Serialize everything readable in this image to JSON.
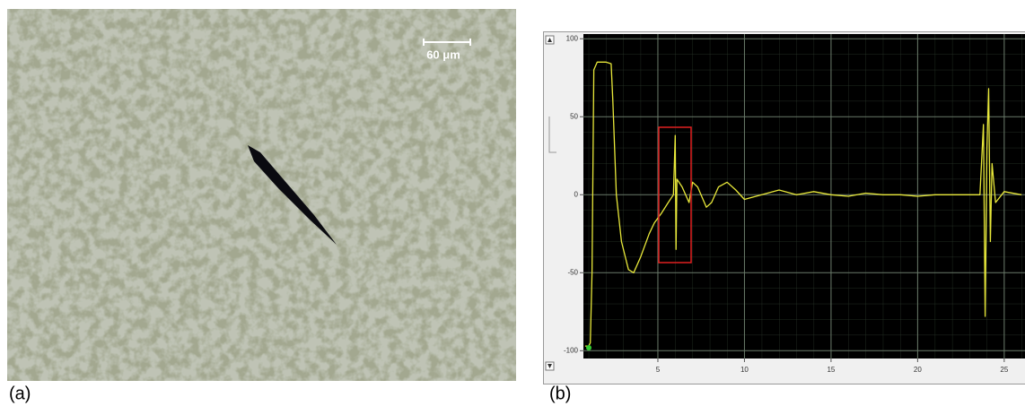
{
  "panel_labels": [
    "(a)",
    "(b)"
  ],
  "micrograph": {
    "scale_bar": "60 μm"
  },
  "chart_data": {
    "type": "line",
    "x": [
      0.8,
      1.0,
      1.1,
      1.2,
      1.3,
      1.5,
      2.0,
      2.3,
      2.4,
      2.6,
      2.9,
      3.3,
      3.6,
      4.0,
      4.5,
      4.8,
      5.2,
      5.6,
      5.9,
      6.0,
      6.05,
      6.1,
      6.4,
      6.8,
      7.0,
      7.3,
      7.8,
      8.1,
      8.5,
      9.0,
      9.5,
      10,
      11,
      12,
      13,
      14,
      15,
      16,
      17,
      18,
      19,
      20,
      21,
      22,
      23,
      23.6,
      23.8,
      23.9,
      24.0,
      24.1,
      24.2,
      24.3,
      24.5,
      25,
      26
    ],
    "series": [
      {
        "color": "#e8e83a",
        "values": [
          -97,
          -97,
          -95,
          -50,
          80,
          85,
          85,
          84,
          60,
          0,
          -30,
          -48,
          -50,
          -40,
          -25,
          -18,
          -12,
          -5,
          0,
          38,
          -35,
          10,
          5,
          -5,
          8,
          5,
          -8,
          -5,
          5,
          8,
          3,
          -3,
          0,
          3,
          0,
          2,
          0,
          -1,
          1,
          0,
          0,
          -1,
          0,
          0,
          0,
          0,
          45,
          -78,
          30,
          68,
          -30,
          20,
          -5,
          2,
          0
        ]
      }
    ],
    "xlim": [
      0.7,
      26.2
    ],
    "xticks": [
      5,
      10,
      15,
      20,
      25
    ],
    "ylim": [
      -105,
      103
    ],
    "yticks": [
      -100,
      -50,
      0,
      50,
      100
    ],
    "grid": true
  }
}
